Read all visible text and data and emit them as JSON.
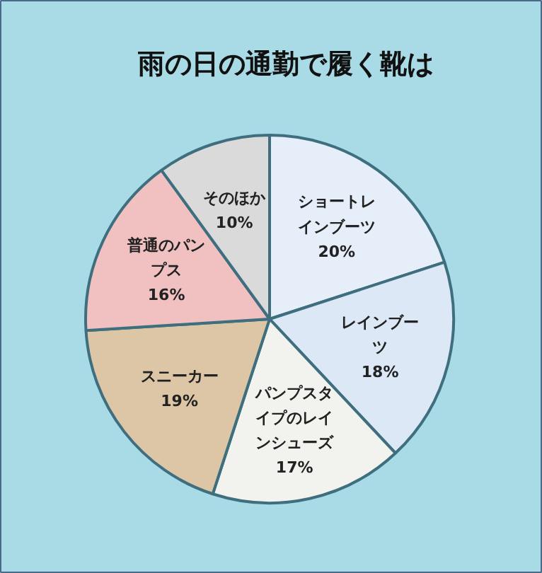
{
  "chart_data": {
    "type": "pie",
    "title": "雨の日の通勤で履く靴は",
    "categories": [
      "ショートレインブーツ",
      "レインブーツ",
      "パンプスタイプのレインシューズ",
      "スニーカー",
      "普通のパンプス",
      "そのほか"
    ],
    "values": [
      20,
      18,
      17,
      19,
      16,
      10
    ],
    "value_labels": [
      "20%",
      "18%",
      "17%",
      "19%",
      "16%",
      "10%"
    ],
    "colors": [
      "#e6eef9",
      "#dce8f6",
      "#f2f3ee",
      "#dcc6a6",
      "#f1c1c1",
      "#dadada"
    ]
  }
}
